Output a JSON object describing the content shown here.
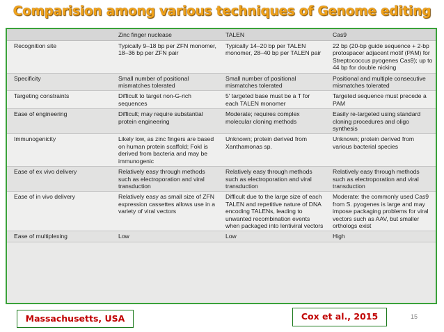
{
  "slide": {
    "title": "Comparision among various techniques of Genome editing",
    "footer_left": "Massachusetts, USA",
    "footer_right": "Cox et al., 2015",
    "page_number": "15"
  },
  "table": {
    "headers": [
      "",
      "Zinc finger nuclease",
      "TALEN",
      "Cas9"
    ],
    "rows": [
      [
        "Recognition site",
        "Typically 9–18 bp per ZFN monomer, 18–36 bp per ZFN pair",
        "Typically 14–20 bp per TALEN monomer, 28–40 bp per TALEN pair",
        "22 bp (20-bp guide sequence + 2-bp protospacer adjacent motif (PAM) for Streptococcus pyogenes Cas9); up to 44 bp for double nicking"
      ],
      [
        "Specificity",
        "Small number of positional mismatches tolerated",
        "Small number of positional mismatches tolerated",
        "Positional and multiple consecutive mismatches tolerated"
      ],
      [
        "Targeting constraints",
        "Difficult to target non-G-rich sequences",
        "5′ targeted base must be a T for each TALEN monomer",
        "Targeted sequence must precede a PAM"
      ],
      [
        "Ease of engineering",
        "Difficult; may require substantial protein engineering",
        "Moderate; requires complex molecular cloning methods",
        "Easily re-targeted using standard cloning procedures and oligo synthesis"
      ],
      [
        "Immunogenicity",
        "Likely low, as zinc fingers are based on human protein scaffold; FokI is derived from bacteria and may be immunogenic",
        "Unknown; protein derived from Xanthamonas sp.",
        "Unknown; protein derived from various bacterial species"
      ],
      [
        "Ease of ex vivo delivery",
        "Relatively easy through methods such as electroporation and viral transduction",
        "Relatively easy through methods such as electroporation and viral transduction",
        "Relatively easy through methods such as electroporation and viral transduction"
      ],
      [
        "Ease of in vivo delivery",
        "Relatively easy as small size of ZFN expression cassettes allows use in a variety of viral vectors",
        "Difficult due to the large size of each TALEN and repetitive nature of DNA encoding TALENs, leading to unwanted recombination events when packaged into lentiviral vectors",
        "Moderate: the commonly used Cas9 from S. pyogenes is large and may impose packaging problems for viral vectors such as AAV, but smaller orthologs exist"
      ],
      [
        "Ease of multiplexing",
        "Low",
        "Low",
        "High"
      ]
    ]
  }
}
